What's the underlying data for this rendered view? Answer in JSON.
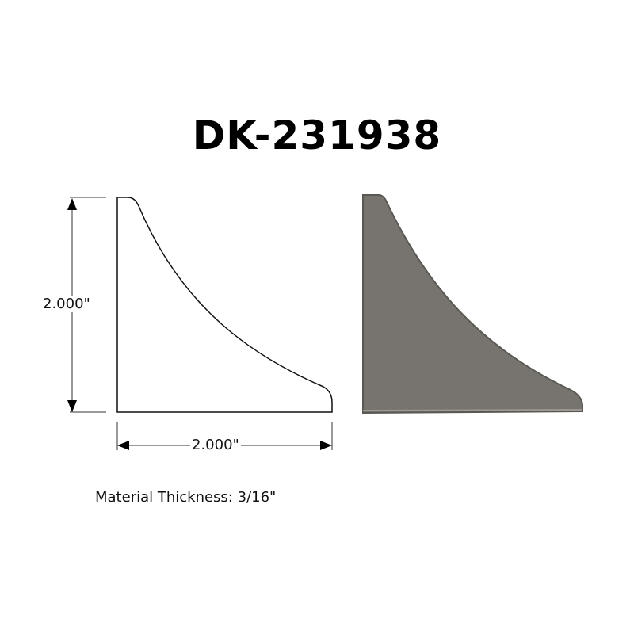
{
  "part_number": "DK-231938",
  "dimensions": {
    "height": "2.000\"",
    "width": "2.000\""
  },
  "material_note": "Material Thickness: 3/16\"",
  "colors": {
    "outline": "#111111",
    "steel": "#77746f",
    "steel_edge": "#5a5853"
  }
}
